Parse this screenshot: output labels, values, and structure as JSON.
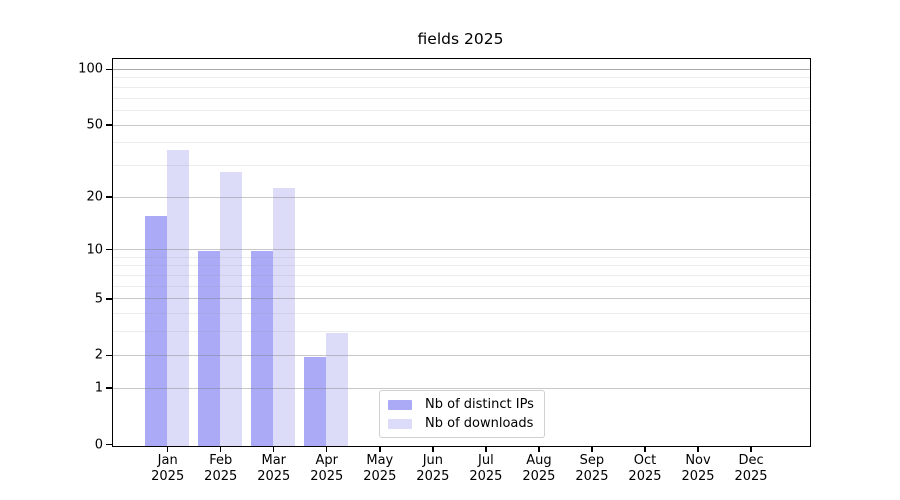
{
  "title": "fields 2025",
  "colors": {
    "distinct_ips_bar": "#aaaaf7",
    "downloads_bar": "#dcdcf9",
    "axis": "#000000",
    "major_gridline": "rgba(128,128,128,0.43)",
    "top_gridline": "rgba(100,100,100,0.55)",
    "minor_gridline": "rgba(150,150,150,0.18)",
    "background": "#ffffff",
    "legend_border": "#d0d0d0"
  },
  "legend": {
    "entries": [
      {
        "label": "Nb of distinct IPs",
        "color": "#aaaaf7"
      },
      {
        "label": "Nb of downloads",
        "color": "#dcdcf9"
      }
    ]
  },
  "chart_data": {
    "type": "bar",
    "title": "fields 2025",
    "x_months": [
      "Jan",
      "Feb",
      "Mar",
      "Apr",
      "May",
      "Jun",
      "Jul",
      "Aug",
      "Sep",
      "Oct",
      "Nov",
      "Dec"
    ],
    "x_year": "2025",
    "categories": [
      "Jan 2025",
      "Feb 2025",
      "Mar 2025",
      "Apr 2025",
      "May 2025",
      "Jun 2025",
      "Jul 2025",
      "Aug 2025",
      "Sep 2025",
      "Oct 2025",
      "Nov 2025",
      "Dec 2025"
    ],
    "series": [
      {
        "name": "Nb of distinct IPs",
        "color": "#aaaaf7",
        "values": [
          16,
          10,
          10,
          2,
          0,
          0,
          0,
          0,
          0,
          0,
          0,
          0
        ]
      },
      {
        "name": "Nb of downloads",
        "color": "#dcdcf9",
        "values": [
          37,
          28,
          23,
          3,
          0,
          0,
          0,
          0,
          0,
          0,
          0,
          0
        ]
      }
    ],
    "yscale": "log(1+x)",
    "ylim": [
      0,
      115
    ],
    "y_major_ticks": [
      0,
      1,
      2,
      5,
      10,
      20,
      50,
      100
    ],
    "y_minor_gridlines": [
      3,
      4,
      6,
      7,
      8,
      9,
      30,
      40,
      60,
      70,
      80,
      90
    ],
    "grid": true,
    "legend_position": "lower center"
  }
}
